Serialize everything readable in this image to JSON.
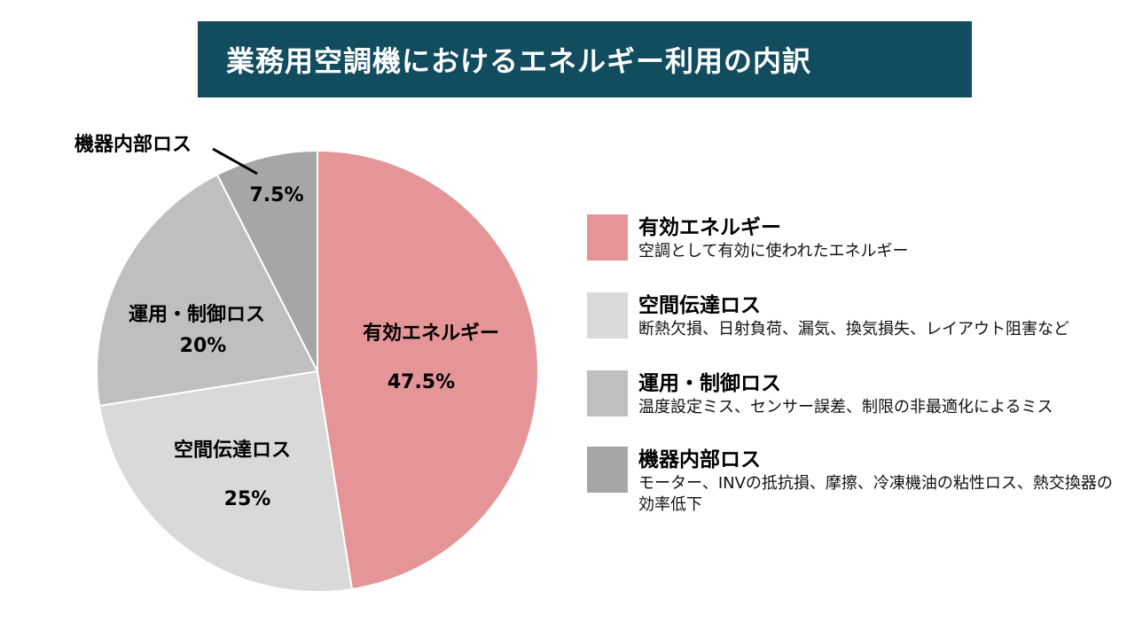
{
  "title": "業務用空調機におけるエネルギー利用の内訳",
  "chart_data": {
    "type": "pie",
    "title": "業務用空調機におけるエネルギー利用の内訳",
    "slices": [
      {
        "label": "有効エネルギー",
        "value": 47.5,
        "display": "47.5%",
        "color": "#e59497"
      },
      {
        "label": "空間伝達ロス",
        "value": 25,
        "display": "25%",
        "color": "#d9d9d9"
      },
      {
        "label": "運用・制御ロス",
        "value": 20,
        "display": "20%",
        "color": "#bfbfbf"
      },
      {
        "label": "機器内部ロス",
        "value": 7.5,
        "display": "7.5%",
        "color": "#a6a6a6"
      }
    ]
  },
  "slice_labels": {
    "effective": {
      "name": "有効エネルギー",
      "pct": "47.5%"
    },
    "spatial": {
      "name": "空間伝達ロス",
      "pct": "25%"
    },
    "operation": {
      "name": "運用・制御ロス",
      "pct": "20%"
    },
    "internal": {
      "name": "機器内部ロス",
      "pct": "7.5%"
    }
  },
  "legend": [
    {
      "title": "有効エネルギー",
      "desc": "空調として有効に使われたエネルギー",
      "color": "#e59497"
    },
    {
      "title": "空間伝達ロス",
      "desc": "断熱欠損、日射負荷、漏気、換気損失、レイアウト阻害など",
      "color": "#d9d9d9"
    },
    {
      "title": "運用・制御ロス",
      "desc": "温度設定ミス、センサー誤差、制限の非最適化によるミス",
      "color": "#bfbfbf"
    },
    {
      "title": "機器内部ロス",
      "desc": "モーター、INVの抵抗損、摩擦、冷凍機油の粘性ロス、熱交換器の効率低下",
      "color": "#a6a6a6"
    }
  ]
}
